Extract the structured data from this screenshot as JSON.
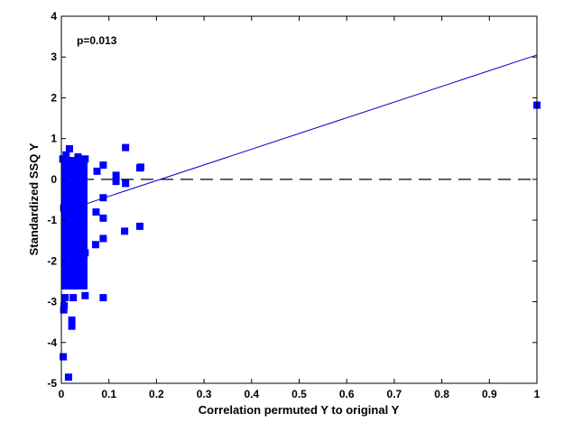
{
  "chart_data": {
    "type": "scatter",
    "title": "",
    "xlabel": "Correlation permuted Y to original Y",
    "ylabel": "Standardized SSQ Y",
    "xlim": [
      0,
      1
    ],
    "ylim": [
      -5,
      4
    ],
    "x_ticks": [
      "0",
      "0.1",
      "0.2",
      "0.3",
      "0.4",
      "0.5",
      "0.6",
      "0.7",
      "0.8",
      "0.9",
      "1"
    ],
    "y_ticks": [
      "-5",
      "-4",
      "-3",
      "-2",
      "-1",
      "0",
      "1",
      "2",
      "3",
      "4"
    ],
    "annotation": "p=0.013",
    "grid": false,
    "colors": {
      "points": "#0000ff",
      "regression": "#0000cc",
      "reference": "#000000"
    },
    "regression_line": {
      "x": [
        0,
        1
      ],
      "y": [
        -0.8,
        3.05
      ]
    },
    "reference_line": {
      "y": 0,
      "style": "dashed"
    },
    "series": [
      {
        "values": [
          [
            1.0,
            1.82
          ],
          [
            0.167,
            0.3
          ],
          [
            0.165,
            0.28
          ],
          [
            0.165,
            -1.15
          ],
          [
            0.135,
            0.78
          ],
          [
            0.135,
            -0.1
          ],
          [
            0.133,
            -1.27
          ],
          [
            0.115,
            0.1
          ],
          [
            0.115,
            -0.05
          ],
          [
            0.088,
            0.35
          ],
          [
            0.088,
            -0.45
          ],
          [
            0.088,
            -0.95
          ],
          [
            0.088,
            -1.45
          ],
          [
            0.088,
            -2.9
          ],
          [
            0.075,
            0.2
          ],
          [
            0.073,
            -0.8
          ],
          [
            0.072,
            -1.6
          ],
          [
            0.05,
            0.5
          ],
          [
            0.05,
            -1.8
          ],
          [
            0.05,
            -2.85
          ],
          [
            0.045,
            -2.4
          ],
          [
            0.04,
            -2.55
          ],
          [
            0.035,
            0.55
          ],
          [
            0.022,
            -3.45
          ],
          [
            0.022,
            -3.6
          ],
          [
            0.025,
            -2.9
          ],
          [
            0.017,
            0.75
          ],
          [
            0.015,
            -2.6
          ],
          [
            0.008,
            -2.9
          ],
          [
            0.006,
            -3.1
          ],
          [
            0.005,
            -3.2
          ],
          [
            0.004,
            -4.35
          ],
          [
            0.015,
            -4.85
          ],
          [
            0.003,
            0.5
          ],
          [
            0.01,
            0.6
          ],
          [
            0.03,
            0.4
          ],
          [
            0.02,
            -0.5
          ],
          [
            0.03,
            -1.0
          ],
          [
            0.01,
            -1.5
          ],
          [
            0.04,
            -2.0
          ],
          [
            0.015,
            -2.2
          ],
          [
            0.025,
            -0.3
          ],
          [
            0.005,
            -0.7
          ],
          [
            0.035,
            -1.2
          ],
          [
            0.045,
            0.1
          ],
          [
            0.012,
            -1.9
          ],
          [
            0.028,
            -2.3
          ],
          [
            0.008,
            -1.1
          ]
        ]
      }
    ],
    "dense_cluster": {
      "x_range": [
        0.0,
        0.055
      ],
      "y_range": [
        -2.7,
        0.55
      ]
    }
  }
}
